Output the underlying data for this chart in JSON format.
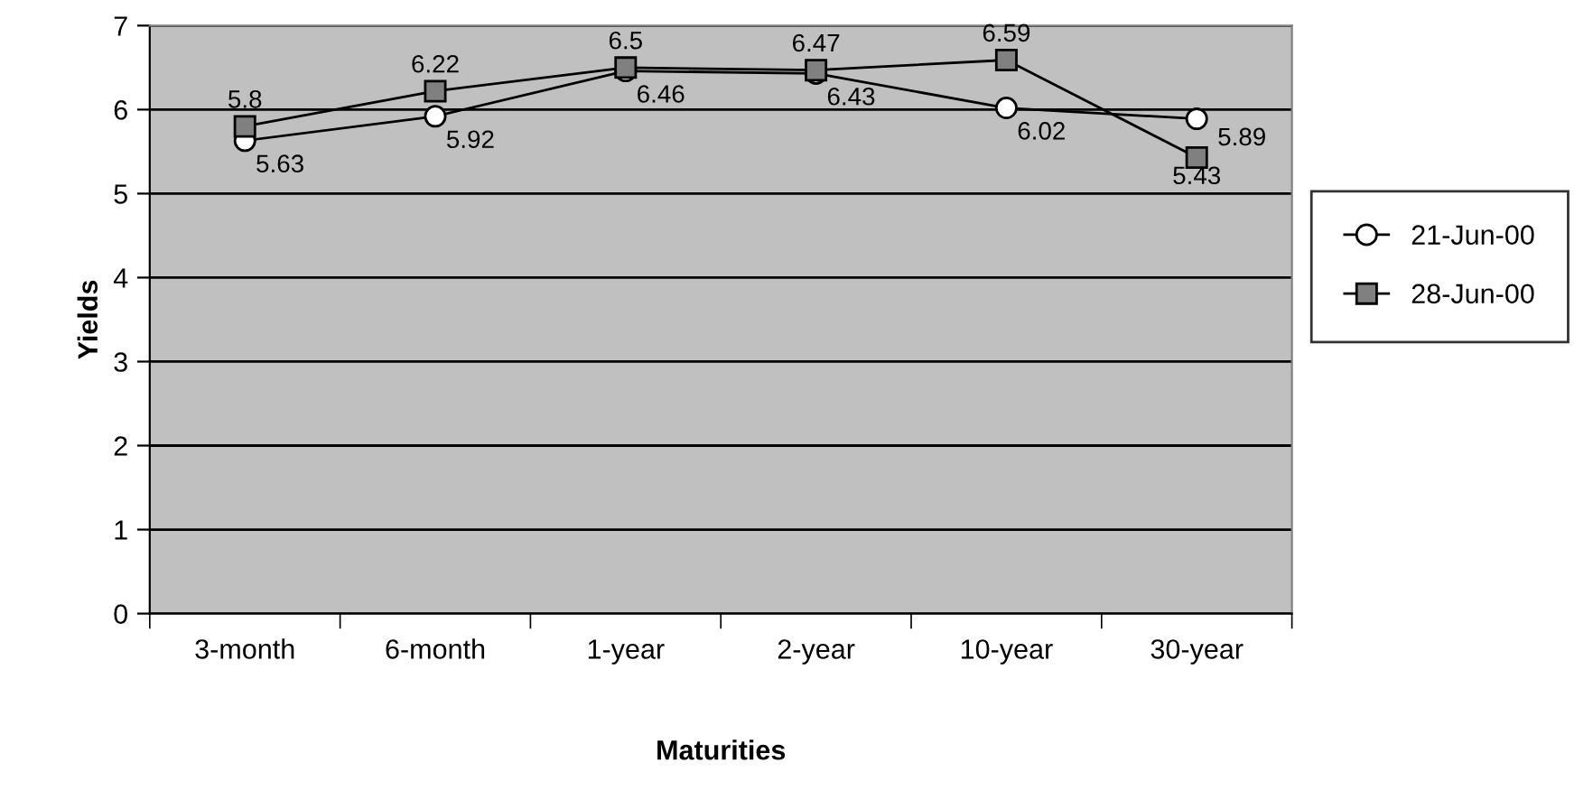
{
  "chart_data": {
    "type": "line",
    "xlabel": "Maturities",
    "ylabel": "Yields",
    "categories": [
      "3-month",
      "6-month",
      "1-year",
      "2-year",
      "10-year",
      "30-year"
    ],
    "series": [
      {
        "name": "21-Jun-00",
        "color": "#ffffff",
        "marker": "circle",
        "values": [
          5.63,
          5.92,
          6.46,
          6.43,
          6.02,
          5.89
        ]
      },
      {
        "name": "28-Jun-00",
        "color": "#808080",
        "marker": "square",
        "values": [
          5.8,
          6.22,
          6.5,
          6.47,
          6.59,
          5.43
        ]
      }
    ],
    "ylim": [
      0,
      7
    ],
    "yticks": [
      0,
      1,
      2,
      3,
      4,
      5,
      6,
      7
    ],
    "grid": "y",
    "legend": "right",
    "data_labels": true
  }
}
